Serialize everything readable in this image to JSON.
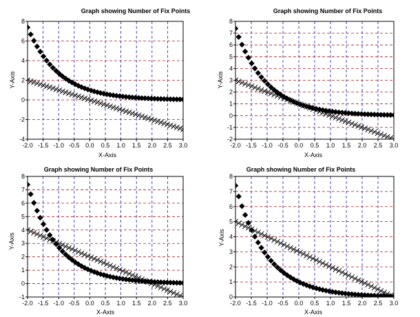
{
  "chart_data": [
    {
      "type": "scatter",
      "title": "Graph showing Number of Fix Points",
      "xlabel": "X-Axis",
      "ylabel": "Y-Axis",
      "xlim": [
        -2.0,
        3.0
      ],
      "ylim": [
        -4,
        8
      ],
      "xticks": [
        "-2.0",
        "-1.5",
        "-1.0",
        "-0.5",
        "0.0",
        "0.5",
        "1.0",
        "1.5",
        "2.0",
        "2.5",
        "3.0"
      ],
      "yticks": [
        "-4",
        "-2",
        "0",
        "2",
        "4",
        "6",
        "8"
      ],
      "grid": true,
      "series": [
        {
          "marker": "diamond",
          "color": "#000000",
          "curve": "exp",
          "x_start": -2.0,
          "x_end": 3.0,
          "count": 50,
          "y_at_start": 7.39,
          "y_at_end": 0.05
        },
        {
          "marker": "x",
          "color": "#000000",
          "curve": "linear",
          "x_start": -2.0,
          "x_end": 3.0,
          "count": 50,
          "y_at_start": 2.0,
          "y_at_end": -3.0
        }
      ]
    },
    {
      "type": "scatter",
      "title": "Graph showing Number of Fix Points",
      "xlabel": "X-Axis",
      "ylabel": "Y-Axis",
      "xlim": [
        -2.0,
        3.0
      ],
      "ylim": [
        -2,
        8
      ],
      "xticks": [
        "-2.0",
        "-1.5",
        "-1.0",
        "-0.5",
        "0.0",
        "0.5",
        "1.0",
        "1.5",
        "2.0",
        "2.5",
        "3.0"
      ],
      "yticks": [
        "-2",
        "-1",
        "0",
        "1",
        "2",
        "3",
        "4",
        "5",
        "6",
        "7",
        "8"
      ],
      "grid": true,
      "series": [
        {
          "marker": "diamond",
          "color": "#000000",
          "curve": "exp",
          "x_start": -2.0,
          "x_end": 3.0,
          "count": 50,
          "y_at_start": 7.39,
          "y_at_end": 0.05
        },
        {
          "marker": "x",
          "color": "#000000",
          "curve": "linear",
          "x_start": -2.0,
          "x_end": 3.0,
          "count": 50,
          "y_at_start": 3.0,
          "y_at_end": -2.0
        }
      ]
    },
    {
      "type": "scatter",
      "title": "Graph showing Number of Fix Points",
      "xlabel": "X-Axis",
      "ylabel": "Y-Axis",
      "xlim": [
        -2.0,
        3.0
      ],
      "ylim": [
        -1,
        8
      ],
      "xticks": [
        "-2.0",
        "-1.5",
        "-1.0",
        "-0.5",
        "0.0",
        "0.5",
        "1.0",
        "1.5",
        "2.0",
        "2.5",
        "3.0"
      ],
      "yticks": [
        "-1",
        "0",
        "1",
        "2",
        "3",
        "4",
        "5",
        "6",
        "7",
        "8"
      ],
      "grid": true,
      "series": [
        {
          "marker": "diamond",
          "color": "#000000",
          "curve": "exp",
          "x_start": -2.0,
          "x_end": 3.0,
          "count": 50,
          "y_at_start": 7.39,
          "y_at_end": 0.05
        },
        {
          "marker": "x",
          "color": "#000000",
          "curve": "linear",
          "x_start": -2.0,
          "x_end": 3.0,
          "count": 50,
          "y_at_start": 4.0,
          "y_at_end": -1.0
        }
      ]
    },
    {
      "type": "scatter",
      "title": "Graph showing Number of Fix Points",
      "xlabel": "X-Axis",
      "ylabel": "Y-Axis",
      "xlim": [
        -2.0,
        3.0
      ],
      "ylim": [
        0,
        8
      ],
      "xticks": [
        "-2.0",
        "-1.5",
        "-1.0",
        "-0.5",
        "0.0",
        "0.5",
        "1.0",
        "1.5",
        "2.0",
        "2.5",
        "3.0"
      ],
      "yticks": [
        "0",
        "1",
        "2",
        "3",
        "4",
        "5",
        "6",
        "7",
        "8"
      ],
      "grid": true,
      "series": [
        {
          "marker": "diamond",
          "color": "#000000",
          "curve": "exp",
          "x_start": -2.0,
          "x_end": 3.0,
          "count": 50,
          "y_at_start": 7.39,
          "y_at_end": 0.05
        },
        {
          "marker": "x",
          "color": "#000000",
          "curve": "linear",
          "x_start": -2.0,
          "x_end": 3.0,
          "count": 50,
          "y_at_start": 5.0,
          "y_at_end": 0.0
        }
      ]
    }
  ]
}
